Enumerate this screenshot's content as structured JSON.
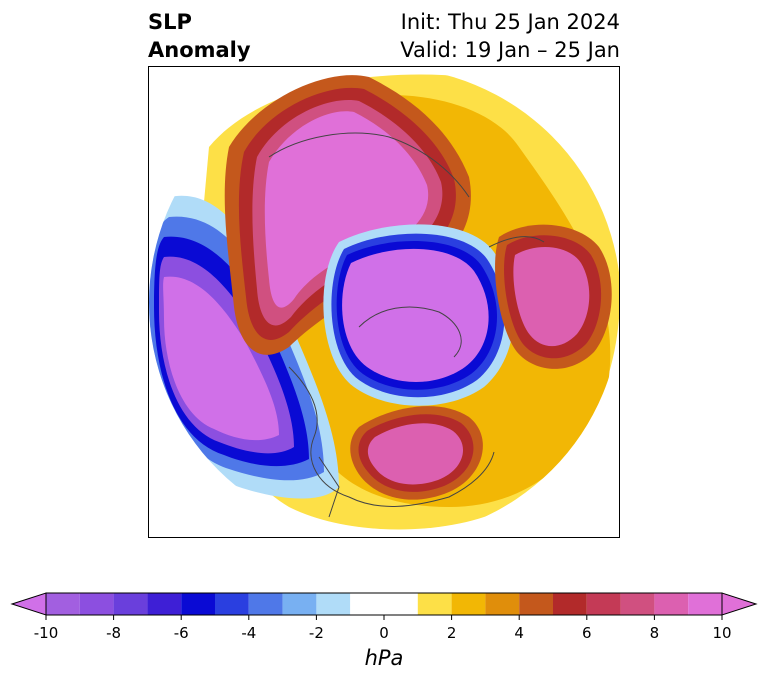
{
  "title": {
    "left_line1": "SLP",
    "left_line2": "Anomaly",
    "right_line1": "Init: Thu 25 Jan 2024",
    "right_line2": "Valid: 19 Jan – 25 Jan"
  },
  "colorbar": {
    "units": "hPa",
    "extend": "both",
    "ticks": [
      "-10",
      "-8",
      "-6",
      "-4",
      "-2",
      "0",
      "2",
      "4",
      "6",
      "8",
      "10"
    ],
    "tick_values": [
      -10,
      -8,
      -6,
      -4,
      -2,
      0,
      2,
      4,
      6,
      8,
      10
    ],
    "bins": [
      {
        "from": -10,
        "to": -9,
        "color": "#a25fe0"
      },
      {
        "from": -9,
        "to": -8,
        "color": "#8c4fe0"
      },
      {
        "from": -8,
        "to": -7,
        "color": "#6a3fdc"
      },
      {
        "from": -7,
        "to": -6,
        "color": "#3e1fd6"
      },
      {
        "from": -6,
        "to": -5,
        "color": "#0a0ad4"
      },
      {
        "from": -5,
        "to": -4,
        "color": "#2a3fe0"
      },
      {
        "from": -4,
        "to": -3,
        "color": "#4f78e8"
      },
      {
        "from": -3,
        "to": -2,
        "color": "#78b0f2"
      },
      {
        "from": -2,
        "to": -1,
        "color": "#b0dcf8"
      },
      {
        "from": -1,
        "to": 1,
        "color": "#ffffff"
      },
      {
        "from": 1,
        "to": 2,
        "color": "#fde047"
      },
      {
        "from": 2,
        "to": 3,
        "color": "#f2b705"
      },
      {
        "from": 3,
        "to": 4,
        "color": "#e08e0b"
      },
      {
        "from": 4,
        "to": 5,
        "color": "#c4581c"
      },
      {
        "from": 5,
        "to": 6,
        "color": "#b22a2a"
      },
      {
        "from": 6,
        "to": 7,
        "color": "#c43a56"
      },
      {
        "from": 7,
        "to": 8,
        "color": "#d05080"
      },
      {
        "from": 8,
        "to": 9,
        "color": "#dc60b0"
      },
      {
        "from": 9,
        "to": 10,
        "color": "#e070d8"
      }
    ],
    "under_color": "#d070e8",
    "over_color": "#e070d8"
  },
  "map": {
    "projection": "north-polar-stereographic",
    "field": "sea-level-pressure-anomaly",
    "features": [
      {
        "name": "pacific-low",
        "sign": "negative"
      },
      {
        "name": "arctic-low",
        "sign": "negative"
      },
      {
        "name": "siberia-high",
        "sign": "positive"
      },
      {
        "name": "eastern-north-america-high",
        "sign": "positive"
      },
      {
        "name": "north-atlantic-europe-high",
        "sign": "positive"
      }
    ]
  }
}
